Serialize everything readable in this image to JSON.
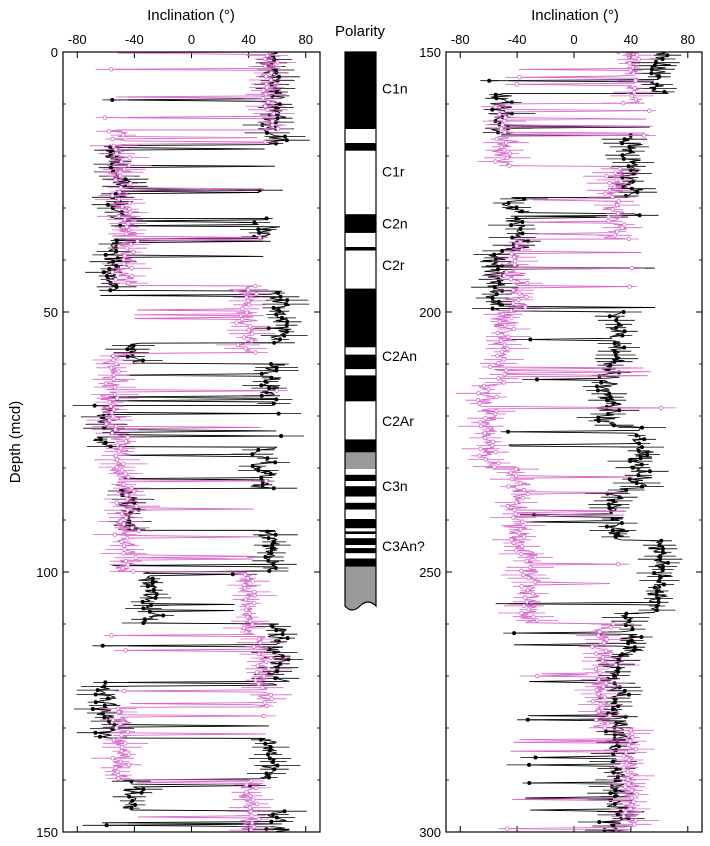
{
  "figure": {
    "colors": {
      "series_black": "#000000",
      "series_pink": "#d966cc",
      "polarity_normal": "#000000",
      "polarity_reversed": "#ffffff",
      "polarity_gray": "#999999"
    }
  },
  "chart_data": [
    {
      "type": "line",
      "panel": "left",
      "xlabel": "Inclination (°)",
      "ylabel": "Depth (mcd)",
      "xlim": [
        -90,
        90
      ],
      "ylim": [
        0,
        150
      ],
      "y_inverted": true,
      "xticks": [
        -80,
        -40,
        0,
        40,
        80
      ],
      "yticks": [
        0,
        50,
        100,
        150
      ],
      "legend": "none",
      "series": [
        {
          "color": "#000000",
          "segments": [
            [
              0,
              4,
              55
            ],
            [
              4,
              18,
              58
            ],
            [
              18,
              24,
              -55
            ],
            [
              24,
              32,
              -50
            ],
            [
              32,
              36,
              50
            ],
            [
              36,
              46,
              -55
            ],
            [
              46,
              56,
              62
            ],
            [
              56,
              60,
              -40
            ],
            [
              60,
              68,
              55
            ],
            [
              68,
              76,
              -60
            ],
            [
              76,
              84,
              50
            ],
            [
              84,
              92,
              -45
            ],
            [
              92,
              100,
              55
            ],
            [
              100,
              110,
              -30
            ],
            [
              110,
              122,
              60
            ],
            [
              122,
              132,
              -60
            ],
            [
              132,
              140,
              55
            ],
            [
              140,
              146,
              -40
            ],
            [
              146,
              150,
              60
            ]
          ]
        },
        {
          "color": "#d966cc",
          "segments": [
            [
              0,
              15,
              55
            ],
            [
              15,
              30,
              -50
            ],
            [
              30,
              45,
              -45
            ],
            [
              45,
              58,
              40
            ],
            [
              58,
              72,
              -55
            ],
            [
              72,
              84,
              -50
            ],
            [
              84,
              100,
              -45
            ],
            [
              100,
              112,
              40
            ],
            [
              112,
              126,
              50
            ],
            [
              126,
              140,
              -50
            ],
            [
              140,
              150,
              40
            ]
          ]
        }
      ]
    },
    {
      "type": "line",
      "panel": "right",
      "xlabel": "Inclination (°)",
      "xlim": [
        -90,
        90
      ],
      "ylim": [
        150,
        300
      ],
      "y_inverted": true,
      "xticks": [
        -80,
        -40,
        0,
        40,
        80
      ],
      "yticks": [
        150,
        200,
        250,
        300
      ],
      "legend": "none",
      "series": [
        {
          "color": "#000000",
          "segments": [
            [
              150,
              158,
              60
            ],
            [
              158,
              166,
              -50
            ],
            [
              166,
              178,
              40
            ],
            [
              178,
              188,
              -40
            ],
            [
              188,
              200,
              -55
            ],
            [
              200,
              210,
              30
            ],
            [
              210,
              222,
              25
            ],
            [
              222,
              234,
              45
            ],
            [
              234,
              244,
              30
            ],
            [
              244,
              258,
              60
            ],
            [
              258,
              266,
              40
            ],
            [
              266,
              300,
              30
            ]
          ]
        },
        {
          "color": "#d966cc",
          "segments": [
            [
              150,
              160,
              40
            ],
            [
              160,
              172,
              -50
            ],
            [
              172,
              186,
              30
            ],
            [
              186,
              200,
              -40
            ],
            [
              200,
              214,
              -50
            ],
            [
              214,
              230,
              -60
            ],
            [
              230,
              246,
              -40
            ],
            [
              246,
              260,
              -30
            ],
            [
              260,
              280,
              20
            ],
            [
              280,
              300,
              40
            ]
          ]
        }
      ]
    },
    {
      "type": "polarity_column",
      "title": "Polarity",
      "ylim": [
        0,
        150
      ],
      "units_note": "depth range matches left panel",
      "blocks": [
        {
          "top": 0,
          "bottom": 14.8,
          "state": "normal"
        },
        {
          "top": 14.8,
          "bottom": 17.5,
          "state": "reversed"
        },
        {
          "top": 17.5,
          "bottom": 19.0,
          "state": "normal"
        },
        {
          "top": 19.0,
          "bottom": 31.2,
          "state": "reversed"
        },
        {
          "top": 31.2,
          "bottom": 34.8,
          "state": "normal"
        },
        {
          "top": 34.8,
          "bottom": 37.5,
          "state": "reversed"
        },
        {
          "top": 37.5,
          "bottom": 38.2,
          "state": "normal"
        },
        {
          "top": 38.2,
          "bottom": 45.5,
          "state": "reversed"
        },
        {
          "top": 45.5,
          "bottom": 56.8,
          "state": "normal"
        },
        {
          "top": 56.8,
          "bottom": 58.2,
          "state": "reversed"
        },
        {
          "top": 58.2,
          "bottom": 61.0,
          "state": "normal"
        },
        {
          "top": 61.0,
          "bottom": 62.2,
          "state": "reversed"
        },
        {
          "top": 62.2,
          "bottom": 67.2,
          "state": "normal"
        },
        {
          "top": 67.2,
          "bottom": 74.5,
          "state": "reversed"
        },
        {
          "top": 74.5,
          "bottom": 77.0,
          "state": "normal"
        },
        {
          "top": 77.0,
          "bottom": 80.2,
          "state": "gray"
        },
        {
          "top": 80.2,
          "bottom": 81.3,
          "state": "reversed"
        },
        {
          "top": 81.3,
          "bottom": 82.5,
          "state": "normal"
        },
        {
          "top": 82.5,
          "bottom": 83.5,
          "state": "reversed"
        },
        {
          "top": 83.5,
          "bottom": 85.5,
          "state": "normal"
        },
        {
          "top": 85.5,
          "bottom": 86.7,
          "state": "reversed"
        },
        {
          "top": 86.7,
          "bottom": 88.0,
          "state": "normal"
        },
        {
          "top": 88.0,
          "bottom": 89.8,
          "state": "reversed"
        },
        {
          "top": 89.8,
          "bottom": 91.6,
          "state": "normal"
        },
        {
          "top": 91.6,
          "bottom": 92.2,
          "state": "reversed"
        },
        {
          "top": 92.2,
          "bottom": 92.7,
          "state": "normal"
        },
        {
          "top": 92.7,
          "bottom": 93.5,
          "state": "reversed"
        },
        {
          "top": 93.5,
          "bottom": 94.8,
          "state": "normal"
        },
        {
          "top": 94.8,
          "bottom": 95.4,
          "state": "reversed"
        },
        {
          "top": 95.4,
          "bottom": 96.4,
          "state": "normal"
        },
        {
          "top": 96.4,
          "bottom": 97.4,
          "state": "reversed"
        },
        {
          "top": 97.4,
          "bottom": 99.0,
          "state": "normal"
        },
        {
          "top": 99.0,
          "bottom": 104.3,
          "state": "gray"
        }
      ],
      "chrons": [
        {
          "label": "C1n",
          "depth": 7
        },
        {
          "label": "C1r",
          "depth": 23
        },
        {
          "label": "C2n",
          "depth": 33
        },
        {
          "label": "C2r",
          "depth": 41
        },
        {
          "label": "C2An",
          "depth": 58.5
        },
        {
          "label": "C2Ar",
          "depth": 71
        },
        {
          "label": "C3n",
          "depth": 83.5
        },
        {
          "label": "C3An?",
          "depth": 95
        }
      ]
    }
  ]
}
